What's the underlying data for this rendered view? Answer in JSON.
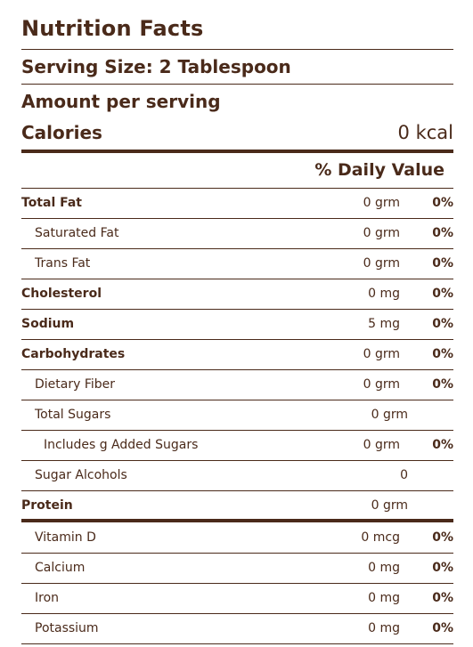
{
  "title": "Nutrition Facts",
  "serving_size": "Serving Size: 2 Tablespoon",
  "amount_per_serving": "Amount per serving",
  "calories": {
    "label": "Calories",
    "value": "0 kcal"
  },
  "daily_value_header": "% Daily Value",
  "nutrients": [
    {
      "label": "Total Fat",
      "amount": "0 grm",
      "pct": "0%"
    },
    {
      "label": "Saturated Fat",
      "amount": "0 grm",
      "pct": "0%"
    },
    {
      "label": "Trans Fat",
      "amount": "0 grm",
      "pct": "0%"
    },
    {
      "label": "Cholesterol",
      "amount": "0 mg",
      "pct": "0%"
    },
    {
      "label": "Sodium",
      "amount": "5 mg",
      "pct": "0%"
    },
    {
      "label": "Carbohydrates",
      "amount": "0 grm",
      "pct": "0%"
    },
    {
      "label": "Dietary Fiber",
      "amount": "0 grm",
      "pct": "0%"
    },
    {
      "label": "Total Sugars",
      "amount": "0 grm",
      "pct": ""
    },
    {
      "label": "Includes g Added Sugars",
      "amount": "0 grm",
      "pct": "0%"
    },
    {
      "label": "Sugar Alcohols",
      "amount": "0",
      "pct": ""
    },
    {
      "label": "Protein",
      "amount": "0 grm",
      "pct": ""
    }
  ],
  "vitamins": [
    {
      "label": "Vitamin D",
      "amount": "0 mcg",
      "pct": "0%"
    },
    {
      "label": "Calcium",
      "amount": "0 mg",
      "pct": "0%"
    },
    {
      "label": "Iron",
      "amount": "0 mg",
      "pct": "0%"
    },
    {
      "label": "Potassium",
      "amount": "0 mg",
      "pct": "0%"
    }
  ]
}
